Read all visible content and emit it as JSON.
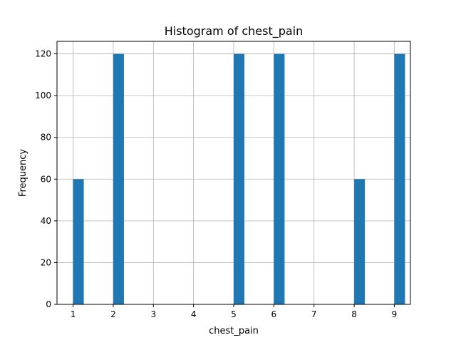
{
  "chart_data": {
    "type": "bar",
    "title": "Histogram of chest_pain",
    "xlabel": "chest_pain",
    "ylabel": "Frequency",
    "xlim": [
      0.6,
      9.4
    ],
    "ylim": [
      0,
      126
    ],
    "xticks": [
      1,
      2,
      3,
      4,
      5,
      6,
      7,
      8,
      9
    ],
    "yticks": [
      0,
      20,
      40,
      60,
      80,
      100,
      120
    ],
    "bin_width": 0.2667,
    "grid": true,
    "bar_color": "#1f77b4",
    "bars": [
      {
        "x": 1,
        "value": 60
      },
      {
        "x": 2,
        "value": 120
      },
      {
        "x": 5,
        "value": 120
      },
      {
        "x": 6,
        "value": 120
      },
      {
        "x": 8,
        "value": 60
      },
      {
        "x": 9,
        "value": 120
      }
    ]
  }
}
